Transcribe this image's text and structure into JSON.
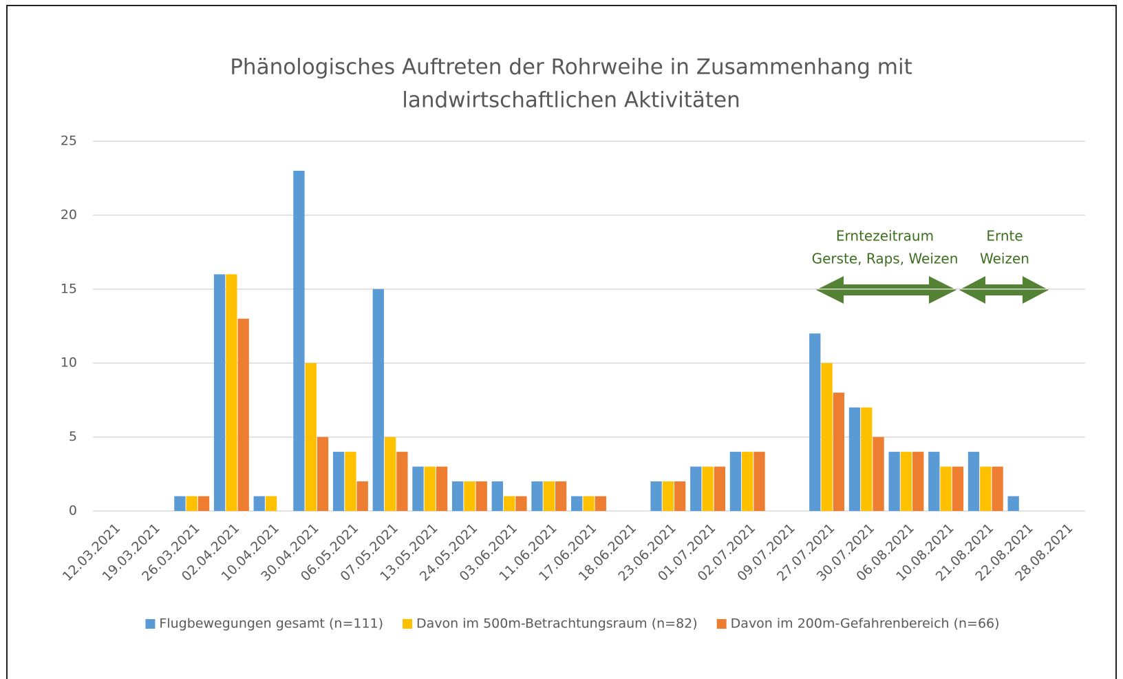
{
  "chart_data": {
    "type": "bar",
    "title": [
      "Phänologisches Auftreten der Rohrweihe in Zusammenhang mit",
      "landwirtschaftlichen Aktivitäten"
    ],
    "categories": [
      "12.03.2021",
      "19.03.2021",
      "26.03.2021",
      "02.04.2021",
      "10.04.2021",
      "30.04.2021",
      "06.05.2021",
      "07.05.2021",
      "13.05.2021",
      "24.05.2021",
      "03.06.2021",
      "11.06.2021",
      "17.06.2021",
      "18.06.2021",
      "23.06.2021",
      "01.07.2021",
      "02.07.2021",
      "09.07.2021",
      "27.07.2021",
      "30.07.2021",
      "06.08.2021",
      "10.08.2021",
      "21.08.2021",
      "22.08.2021",
      "28.08.2021"
    ],
    "series": [
      {
        "name": "Flugbewegungen gesamt (n=111)",
        "color": "#5b9bd5",
        "values": [
          0,
          0,
          1,
          16,
          1,
          23,
          4,
          15,
          3,
          2,
          2,
          2,
          1,
          0,
          2,
          3,
          4,
          0,
          12,
          7,
          4,
          4,
          4,
          1,
          0
        ]
      },
      {
        "name": "Davon im 500m-Betrachtungsraum (n=82)",
        "color": "#ffc000",
        "values": [
          0,
          0,
          1,
          16,
          1,
          10,
          4,
          5,
          3,
          2,
          1,
          2,
          1,
          0,
          2,
          3,
          4,
          0,
          10,
          7,
          4,
          3,
          3,
          0,
          0
        ]
      },
      {
        "name": "Davon im 200m-Gefahrenbereich (n=66)",
        "color": "#ed7d31",
        "values": [
          0,
          0,
          1,
          13,
          0,
          5,
          2,
          4,
          3,
          2,
          1,
          2,
          1,
          0,
          2,
          3,
          4,
          0,
          8,
          5,
          4,
          3,
          3,
          0,
          0
        ]
      }
    ],
    "ylim": [
      0,
      25
    ],
    "yticks": [
      0,
      5,
      10,
      15,
      20,
      25
    ],
    "grid": true,
    "legend": "bottom",
    "annotations": [
      [
        "Erntezeitraum",
        "Gerste, Raps, Weizen"
      ],
      [
        "Ernte",
        "Weizen"
      ]
    ]
  }
}
